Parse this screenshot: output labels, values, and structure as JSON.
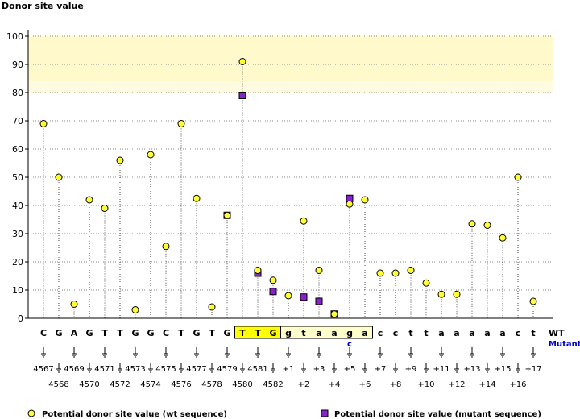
{
  "chart_data": {
    "type": "scatter",
    "ylabel": "Donor site value",
    "ylim": [
      0,
      100
    ],
    "yticks": [
      0,
      10,
      20,
      30,
      40,
      50,
      60,
      70,
      80,
      90,
      100
    ],
    "grid": true,
    "highlight_band": [
      80,
      100
    ],
    "x": [
      "4567",
      "4568",
      "4569",
      "4570",
      "4571",
      "4572",
      "4573",
      "4574",
      "4575",
      "4576",
      "4577",
      "4578",
      "4579",
      "4580",
      "4581",
      "4582",
      "+1",
      "+2",
      "+3",
      "+4",
      "+5",
      "+6",
      "+7",
      "+8",
      "+9",
      "+10",
      "+11",
      "+12",
      "+13",
      "+14",
      "+15",
      "+16",
      "+17"
    ],
    "sequence_wt": [
      "C",
      "G",
      "A",
      "G",
      "T",
      "T",
      "G",
      "G",
      "C",
      "T",
      "G",
      "T",
      "G",
      "T",
      "T",
      "G",
      "g",
      "t",
      "a",
      "a",
      "g",
      "a",
      "c",
      "c",
      "t",
      "t",
      "a",
      "a",
      "a",
      "a",
      "a",
      "c",
      "t"
    ],
    "sequence_mutant": [
      "",
      "",
      "",
      "",
      "",
      "",
      "",
      "",
      "",
      "",
      "",
      "",
      "",
      "",
      "",
      "",
      "",
      "",
      "",
      "",
      "c",
      "",
      "",
      "",
      "",
      "",
      "",
      "",
      "",
      "",
      "",
      "",
      ""
    ],
    "row_labels": {
      "wt": "WT",
      "mutant": "Mutant"
    },
    "series": [
      {
        "name": "Potential donor site value (wt sequence)",
        "marker": "circle",
        "color": "#ffff33",
        "values": [
          69,
          50,
          5,
          42,
          39,
          56,
          3,
          58,
          25.5,
          69,
          42.5,
          4,
          36.5,
          91,
          17,
          13.5,
          8,
          34.5,
          17,
          1.5,
          40.5,
          42,
          16,
          16,
          17,
          12.5,
          8.5,
          8.5,
          33.5,
          33,
          28.5,
          50,
          6
        ]
      },
      {
        "name": "Potential donor site value (mutant sequence)",
        "marker": "square",
        "color": "#8822cc",
        "values": [
          null,
          null,
          null,
          null,
          null,
          null,
          null,
          null,
          null,
          null,
          null,
          null,
          36.5,
          79,
          16,
          9.5,
          null,
          7.5,
          6,
          1.5,
          42.5,
          null,
          null,
          null,
          null,
          null,
          null,
          null,
          null,
          null,
          null,
          null,
          null
        ]
      }
    ]
  }
}
